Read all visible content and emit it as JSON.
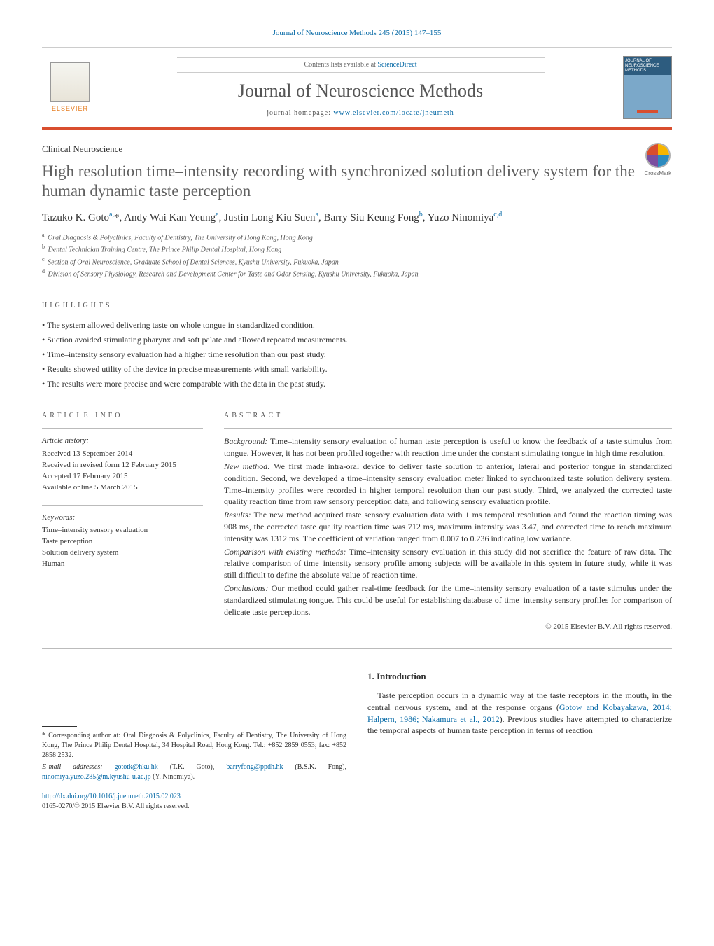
{
  "citation": "Journal of Neuroscience Methods 245 (2015) 147–155",
  "header": {
    "contents_prefix": "Contents lists available at ",
    "contents_link": "ScienceDirect",
    "journal_name": "Journal of Neuroscience Methods",
    "homepage_prefix": "journal homepage: ",
    "homepage_url": "www.elsevier.com/locate/jneumeth",
    "elsevier_label": "ELSEVIER",
    "cover_label_line1": "JOURNAL OF",
    "cover_label_line2": "NEUROSCIENCE",
    "cover_label_line3": "METHODS"
  },
  "article_type": "Clinical Neuroscience",
  "crossmark_label": "CrossMark",
  "title": "High resolution time–intensity recording with synchronized solution delivery system for the human dynamic taste perception",
  "authors_html": "Tazuko K. Goto<sup>a,</sup><span class='star'>*</span>, Andy Wai Kan Yeung<sup>a</sup>, Justin Long Kiu Suen<sup>a</sup>, Barry Siu Keung Fong<sup>b</sup>, Yuzo Ninomiya<sup>c,d</sup>",
  "affiliations": [
    {
      "sup": "a",
      "text": "Oral Diagnosis & Polyclinics, Faculty of Dentistry, The University of Hong Kong, Hong Kong"
    },
    {
      "sup": "b",
      "text": "Dental Technician Training Centre, The Prince Philip Dental Hospital, Hong Kong"
    },
    {
      "sup": "c",
      "text": "Section of Oral Neuroscience, Graduate School of Dental Sciences, Kyushu University, Fukuoka, Japan"
    },
    {
      "sup": "d",
      "text": "Division of Sensory Physiology, Research and Development Center for Taste and Odor Sensing, Kyushu University, Fukuoka, Japan"
    }
  ],
  "highlights_label": "HIGHLIGHTS",
  "highlights": [
    "The system allowed delivering taste on whole tongue in standardized condition.",
    "Suction avoided stimulating pharynx and soft palate and allowed repeated measurements.",
    "Time–intensity sensory evaluation had a higher time resolution than our past study.",
    "Results showed utility of the device in precise measurements with small variability.",
    "The results were more precise and were comparable with the data in the past study."
  ],
  "article_info_label": "ARTICLE INFO",
  "abstract_label": "ABSTRACT",
  "history": {
    "head": "Article history:",
    "lines": [
      "Received 13 September 2014",
      "Received in revised form 12 February 2015",
      "Accepted 17 February 2015",
      "Available online 5 March 2015"
    ]
  },
  "keywords": {
    "head": "Keywords:",
    "items": [
      "Time–intensity sensory evaluation",
      "Taste perception",
      "Solution delivery system",
      "Human"
    ]
  },
  "abstract": {
    "background": {
      "label": "Background:",
      "text": " Time–intensity sensory evaluation of human taste perception is useful to know the feedback of a taste stimulus from tongue. However, it has not been profiled together with reaction time under the constant stimulating tongue in high time resolution."
    },
    "new_method": {
      "label": "New method:",
      "text": " We first made intra-oral device to deliver taste solution to anterior, lateral and posterior tongue in standardized condition. Second, we developed a time–intensity sensory evaluation meter linked to synchronized taste solution delivery system. Time–intensity profiles were recorded in higher temporal resolution than our past study. Third, we analyzed the corrected taste quality reaction time from raw sensory perception data, and following sensory evaluation profile."
    },
    "results": {
      "label": "Results:",
      "text": " The new method acquired taste sensory evaluation data with 1 ms temporal resolution and found the reaction timing was 908 ms, the corrected taste quality reaction time was 712 ms, maximum intensity was 3.47, and corrected time to reach maximum intensity was 1312 ms. The coefficient of variation ranged from 0.007 to 0.236 indicating low variance."
    },
    "comparison": {
      "label": "Comparison with existing methods:",
      "text": " Time–intensity sensory evaluation in this study did not sacrifice the feature of raw data. The relative comparison of time–intensity sensory profile among subjects will be available in this system in future study, while it was still difficult to define the absolute value of reaction time."
    },
    "conclusions": {
      "label": "Conclusions:",
      "text": " Our method could gather real-time feedback for the time–intensity sensory evaluation of a taste stimulus under the standardized stimulating tongue. This could be useful for establishing database of time–intensity sensory profiles for comparison of delicate taste perceptions."
    },
    "copyright": "© 2015 Elsevier B.V. All rights reserved."
  },
  "footnote": {
    "corresponding": "* Corresponding author at: Oral Diagnosis & Polyclinics, Faculty of Dentistry, The University of Hong Kong, The Prince Philip Dental Hospital, 34 Hospital Road, Hong Kong. Tel.: +852 2859 0553; fax: +852 2858 2532.",
    "email_label": "E-mail addresses: ",
    "emails": [
      {
        "addr": "gototk@hku.hk",
        "who": " (T.K. Goto), "
      },
      {
        "addr": "barryfong@ppdh.hk",
        "who": " (B.S.K. Fong), "
      },
      {
        "addr": "ninomiya.yuzo.285@m.kyushu-u.ac.jp",
        "who": " (Y. Ninomiya)."
      }
    ]
  },
  "intro": {
    "heading": "1. Introduction",
    "para": "Taste perception occurs in a dynamic way at the taste receptors in the mouth, in the central nervous system, and at the response organs (",
    "cite": "Gotow and Kobayakawa, 2014; Halpern, 1986; Nakamura et al., 2012",
    "para_after": "). Previous studies have attempted to characterize the temporal aspects of human taste perception in terms of reaction"
  },
  "doi": {
    "url": "http://dx.doi.org/10.1016/j.jneumeth.2015.02.023",
    "issn_line": "0165-0270/© 2015 Elsevier B.V. All rights reserved."
  },
  "colors": {
    "accent_orange": "#d94e2e",
    "link_blue": "#0066a4",
    "text_gray": "#606060",
    "rule_gray": "#bbbbbb"
  }
}
